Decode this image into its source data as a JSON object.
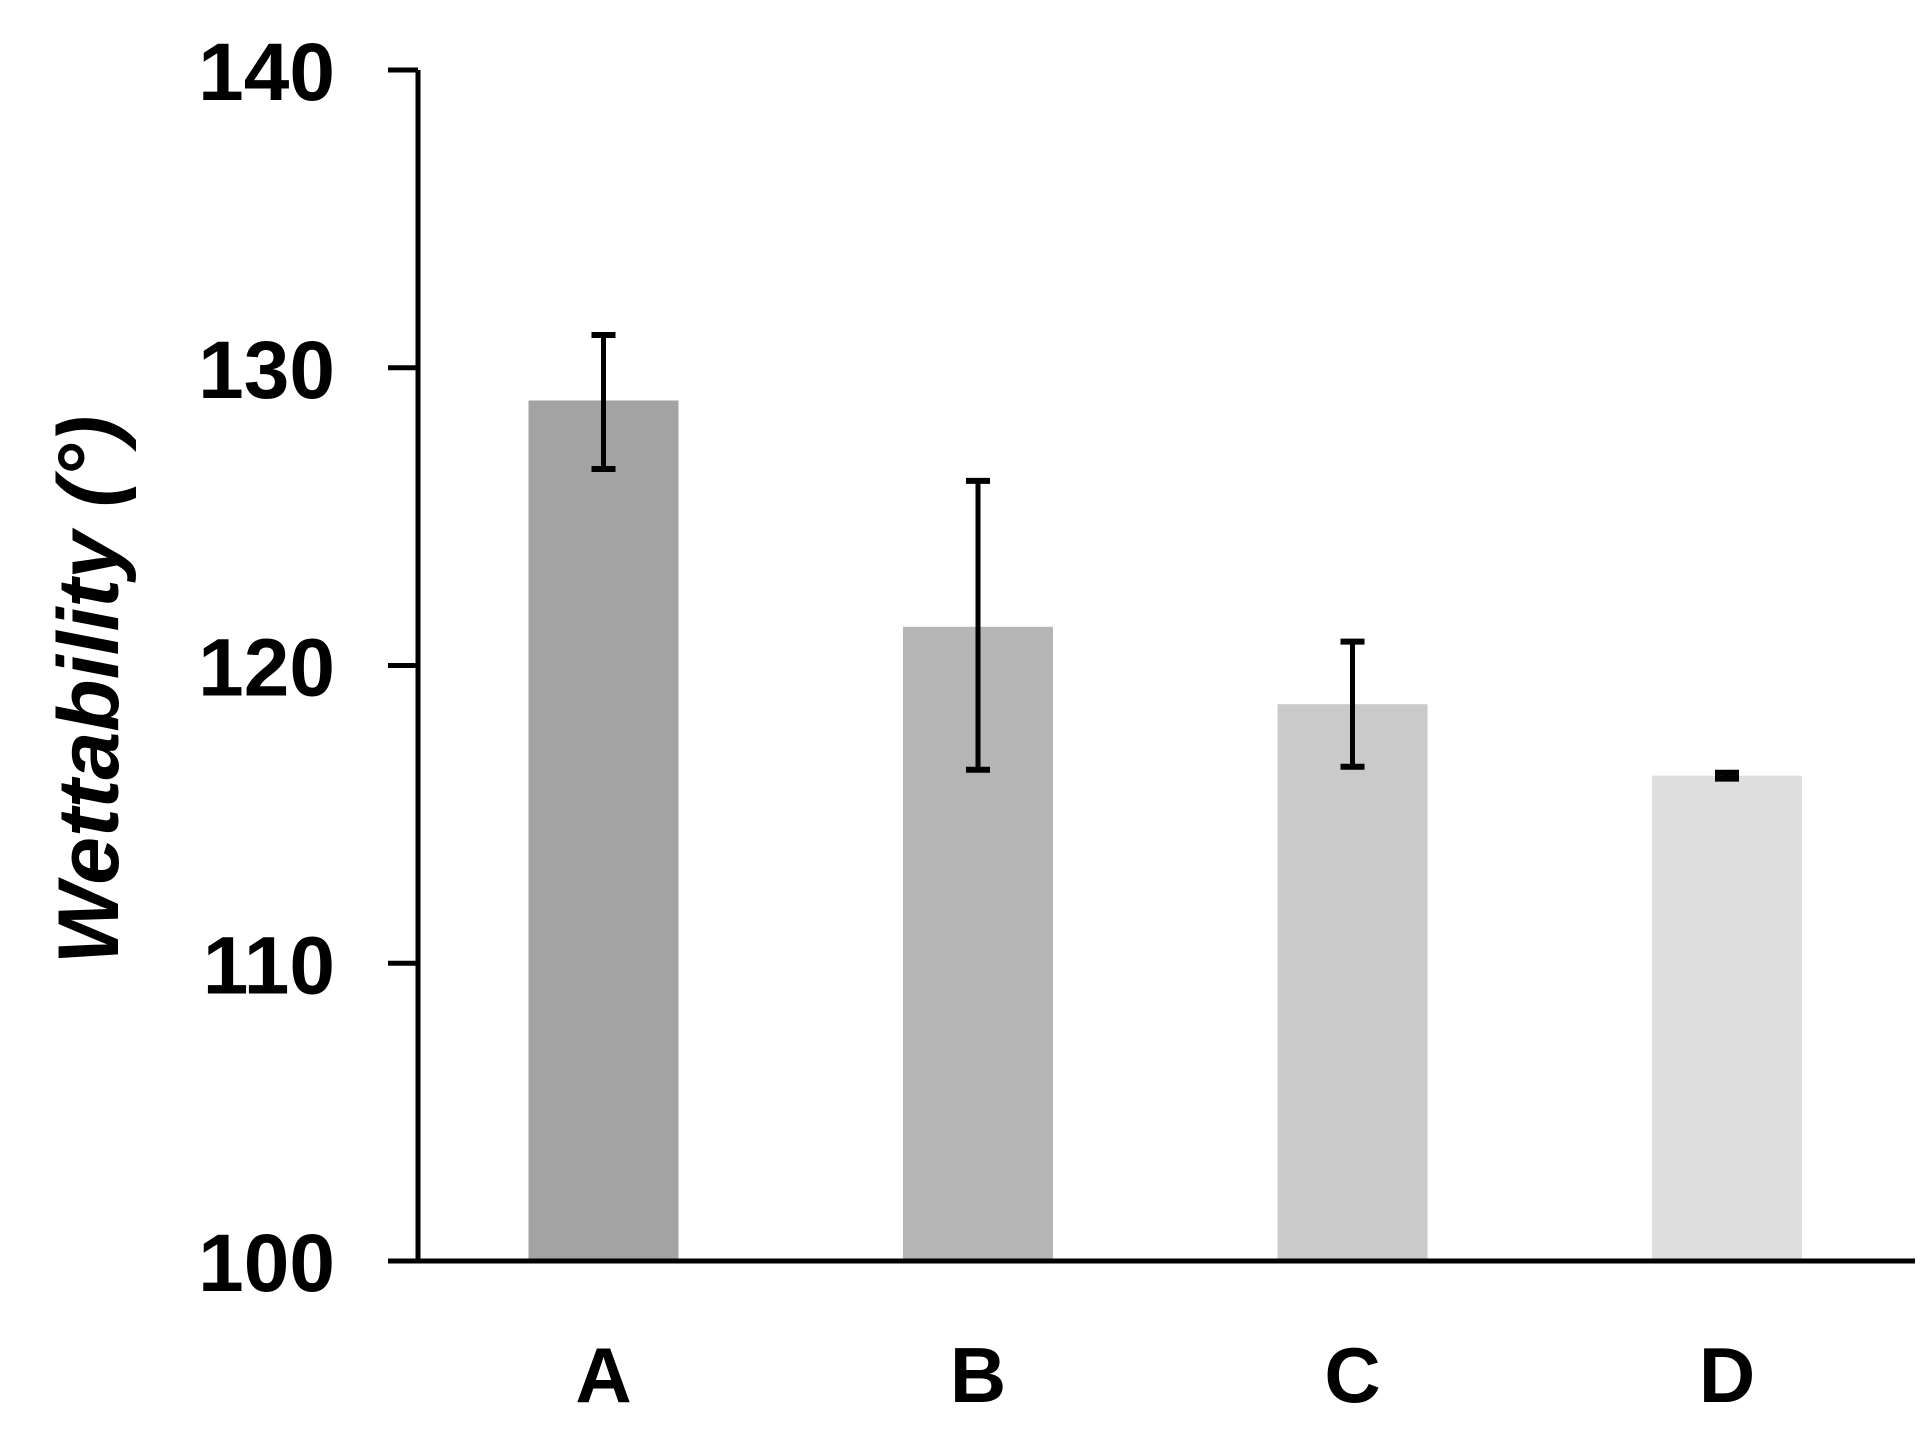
{
  "chart_data": {
    "type": "bar",
    "title": "",
    "xlabel": "",
    "ylabel": "Wettability (°)",
    "ylim": [
      100,
      140
    ],
    "yticks": [
      100,
      110,
      120,
      130,
      140
    ],
    "grid": false,
    "categories": [
      "A",
      "B",
      "C",
      "D"
    ],
    "values": [
      128.9,
      121.3,
      118.7,
      116.3
    ],
    "errors_low": [
      126.6,
      116.5,
      116.6,
      116.2
    ],
    "errors_high": [
      131.1,
      126.2,
      120.8,
      116.4
    ],
    "colors": [
      "#a3a3a3",
      "#b5b5b5",
      "#cacaca",
      "#dedede"
    ]
  }
}
